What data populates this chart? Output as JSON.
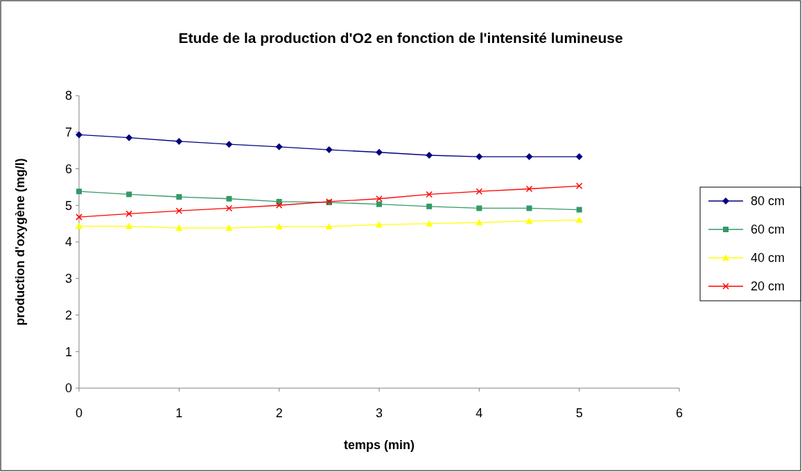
{
  "chart_data": {
    "type": "line",
    "title": "Etude de la production d'O2 en fonction de l'intensité lumineuse",
    "xlabel": "temps (min)",
    "ylabel": "production d'oxygène (mg/l)",
    "x": [
      0,
      0.5,
      1,
      1.5,
      2,
      2.5,
      3,
      3.5,
      4,
      4.5,
      5
    ],
    "series": [
      {
        "name": "80 cm",
        "color": "#000080",
        "marker": "diamond",
        "values": [
          6.93,
          6.85,
          6.75,
          6.67,
          6.6,
          6.52,
          6.45,
          6.37,
          6.33,
          6.33,
          6.33
        ]
      },
      {
        "name": "60 cm",
        "color": "#339966",
        "marker": "square",
        "values": [
          5.38,
          5.3,
          5.23,
          5.18,
          5.1,
          5.08,
          5.03,
          4.97,
          4.92,
          4.92,
          4.88
        ]
      },
      {
        "name": "40 cm",
        "color": "#ffff00",
        "marker": "triangle",
        "values": [
          4.43,
          4.43,
          4.38,
          4.38,
          4.42,
          4.42,
          4.47,
          4.5,
          4.53,
          4.57,
          4.6
        ]
      },
      {
        "name": "20 cm",
        "color": "#ff0000",
        "marker": "cross",
        "values": [
          4.68,
          4.77,
          4.85,
          4.92,
          5.0,
          5.1,
          5.18,
          5.3,
          5.38,
          5.45,
          5.53
        ]
      }
    ],
    "xlim": [
      0,
      6
    ],
    "xticks": [
      0,
      1,
      2,
      3,
      4,
      5,
      6
    ],
    "ylim": [
      0,
      8
    ],
    "yticks": [
      0,
      1,
      2,
      3,
      4,
      5,
      6,
      7,
      8
    ],
    "legend": "right",
    "grid": false
  }
}
